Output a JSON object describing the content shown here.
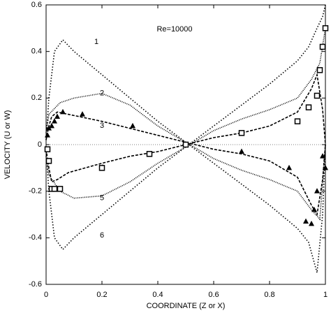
{
  "chart_data": {
    "type": "line",
    "annotation": "Re=10000",
    "x_label": "COORDINATE (Z or X)",
    "y_label": "VELOCITY (U or W)",
    "xlim": [
      0,
      1
    ],
    "ylim": [
      -0.6,
      0.6
    ],
    "xticks": [
      0,
      0.2,
      0.4,
      0.6,
      0.8,
      1
    ],
    "yticks": [
      -0.6,
      -0.4,
      -0.2,
      0,
      0.2,
      0.4,
      0.6
    ],
    "zero_line": true,
    "series": [
      {
        "name": "1",
        "color": "#000",
        "dash": "1.5 2.5",
        "x": [
          0,
          0.01,
          0.03,
          0.06,
          0.1,
          0.2,
          0.3,
          0.4,
          0.5,
          0.6,
          0.7,
          0.8,
          0.9,
          0.94,
          0.97,
          0.99,
          1
        ],
        "values": [
          0.02,
          0.2,
          0.4,
          0.45,
          0.4,
          0.3,
          0.2,
          0.1,
          0.01,
          -0.08,
          -0.17,
          -0.26,
          -0.36,
          -0.42,
          -0.55,
          -0.3,
          0
        ]
      },
      {
        "name": "2",
        "color": "#000",
        "dash": "1 1.5",
        "x": [
          0,
          0.01,
          0.05,
          0.1,
          0.2,
          0.3,
          0.4,
          0.5,
          0.6,
          0.7,
          0.8,
          0.9,
          0.95,
          0.98,
          1
        ],
        "values": [
          0.05,
          0.13,
          0.18,
          0.2,
          0.22,
          0.17,
          0.08,
          0.01,
          -0.06,
          -0.11,
          -0.15,
          -0.2,
          -0.28,
          -0.32,
          0
        ]
      },
      {
        "name": "3",
        "color": "#000",
        "dash": "4 2",
        "x": [
          0,
          0.01,
          0.02,
          0.04,
          0.08,
          0.2,
          0.3,
          0.4,
          0.5,
          0.6,
          0.7,
          0.8,
          0.9,
          0.95,
          0.97,
          0.99,
          1
        ],
        "values": [
          0.02,
          0.08,
          0.12,
          0.14,
          0.13,
          0.1,
          0.07,
          0.04,
          0.01,
          -0.02,
          -0.04,
          -0.07,
          -0.14,
          -0.26,
          -0.3,
          -0.15,
          0
        ]
      },
      {
        "name": "4",
        "color": "#000",
        "dash": "4 2",
        "x": [
          0,
          0.01,
          0.02,
          0.04,
          0.08,
          0.2,
          0.3,
          0.4,
          0.5,
          0.6,
          0.7,
          0.8,
          0.9,
          0.95,
          0.97,
          0.99,
          1
        ],
        "values": [
          -0.02,
          -0.1,
          -0.16,
          -0.15,
          -0.12,
          -0.08,
          -0.05,
          -0.03,
          0,
          0.03,
          0.05,
          0.08,
          0.14,
          0.24,
          0.3,
          0.15,
          0
        ]
      },
      {
        "name": "5",
        "color": "#000",
        "dash": "1 1.5",
        "x": [
          0,
          0.01,
          0.05,
          0.1,
          0.2,
          0.3,
          0.4,
          0.5,
          0.6,
          0.7,
          0.8,
          0.9,
          0.95,
          0.98,
          1
        ],
        "values": [
          -0.05,
          -0.13,
          -0.2,
          -0.23,
          -0.22,
          -0.16,
          -0.08,
          -0.01,
          0.06,
          0.11,
          0.15,
          0.2,
          0.28,
          0.35,
          0.5
        ]
      },
      {
        "name": "6",
        "color": "#000",
        "dash": "1.5 2.5",
        "x": [
          0,
          0.01,
          0.03,
          0.06,
          0.1,
          0.2,
          0.3,
          0.4,
          0.5,
          0.6,
          0.7,
          0.8,
          0.9,
          0.94,
          0.97,
          0.99,
          1
        ],
        "values": [
          -0.02,
          -0.2,
          -0.4,
          -0.45,
          -0.4,
          -0.3,
          -0.2,
          -0.1,
          -0.01,
          0.08,
          0.17,
          0.26,
          0.36,
          0.42,
          0.5,
          0.55,
          0.6
        ]
      },
      {
        "marker": "triangle",
        "color": "#000",
        "x": [
          0.005,
          0.01,
          0.02,
          0.03,
          0.04,
          0.06,
          0.13,
          0.31,
          0.5,
          0.7,
          0.87,
          0.93,
          0.95,
          0.96,
          0.97,
          0.99,
          1
        ],
        "values": [
          0.04,
          0.07,
          0.08,
          0.1,
          0.12,
          0.14,
          0.13,
          0.08,
          0,
          -0.03,
          -0.1,
          -0.33,
          -0.34,
          -0.28,
          -0.2,
          -0.05,
          -0.1
        ]
      },
      {
        "marker": "square",
        "color": "#000",
        "x": [
          0.005,
          0.01,
          0.02,
          0.03,
          0.05,
          0.2,
          0.37,
          0.5,
          0.7,
          0.9,
          0.94,
          0.97,
          0.98,
          0.99,
          1
        ],
        "values": [
          -0.02,
          -0.07,
          -0.19,
          -0.19,
          -0.19,
          -0.1,
          -0.04,
          0,
          0.05,
          0.1,
          0.16,
          0.21,
          0.32,
          0.42,
          0.5
        ]
      }
    ]
  }
}
